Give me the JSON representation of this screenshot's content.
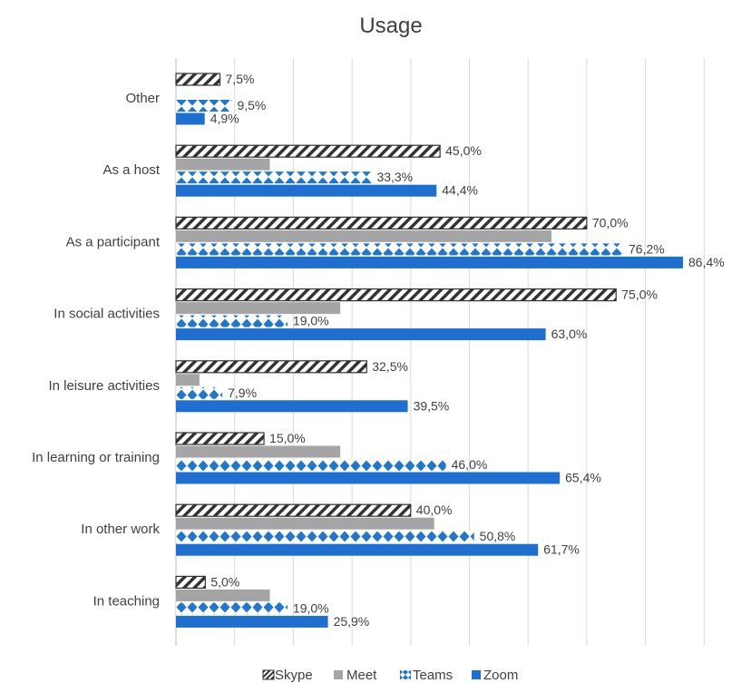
{
  "chart_data": {
    "type": "bar",
    "orientation": "horizontal",
    "title": "Usage",
    "categories": [
      "Other",
      "As a host",
      "As a participant",
      "In social activities",
      "In leisure activities",
      "In learning or training",
      "In other work",
      "In teaching"
    ],
    "series": [
      {
        "name": "Skype",
        "values": [
          7.5,
          45.0,
          70.0,
          75.0,
          32.5,
          15.0,
          40.0,
          5.0
        ],
        "labels": [
          "7,5%",
          "45,0%",
          "70,0%",
          "75,0%",
          "32,5%",
          "15,0%",
          "40,0%",
          "5,0%"
        ]
      },
      {
        "name": "Meet",
        "values": [
          0,
          16.0,
          64.0,
          28.0,
          4.0,
          28.0,
          44.0,
          16.0
        ],
        "labels": []
      },
      {
        "name": "Teams",
        "values": [
          9.5,
          33.3,
          76.2,
          19.0,
          7.9,
          46.0,
          50.8,
          19.0
        ],
        "labels": [
          "9,5%",
          "33,3%",
          "76,2%",
          "19,0%",
          "7,9%",
          "46,0%",
          "50,8%",
          "19,0%"
        ]
      },
      {
        "name": "Zoom",
        "values": [
          4.9,
          44.4,
          86.4,
          63.0,
          39.5,
          65.4,
          61.7,
          25.9
        ],
        "labels": [
          "4,9%",
          "44,4%",
          "86,4%",
          "63,0%",
          "39,5%",
          "65,4%",
          "61,7%",
          "25,9%"
        ]
      }
    ],
    "xlim": [
      0,
      90
    ],
    "grid": true,
    "legend_position": "bottom",
    "colors": {
      "Skype": "#404040",
      "Meet": "#a5a5a5",
      "Teams": "#1f77d0",
      "Zoom": "#1f6fd0"
    }
  }
}
